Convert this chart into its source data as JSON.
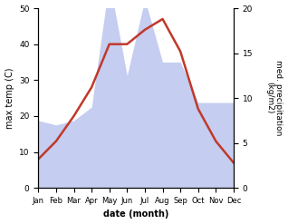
{
  "months": [
    "Jan",
    "Feb",
    "Mar",
    "Apr",
    "May",
    "Jun",
    "Jul",
    "Aug",
    "Sep",
    "Oct",
    "Nov",
    "Dec"
  ],
  "temperature": [
    8,
    13,
    20,
    28,
    40,
    40,
    44,
    47,
    38,
    22,
    13,
    7
  ],
  "precipitation": [
    7.5,
    7.0,
    7.5,
    9.0,
    23.0,
    12.5,
    21.0,
    14.0,
    14.0,
    9.5,
    9.5,
    9.5
  ],
  "temp_color": "#c0392b",
  "precip_fill_color": "#c5cdf0",
  "temp_ylim": [
    0,
    50
  ],
  "precip_ylim": [
    0,
    20
  ],
  "temp_yticks": [
    0,
    10,
    20,
    30,
    40,
    50
  ],
  "precip_yticks": [
    0,
    5,
    10,
    15,
    20
  ],
  "xlabel": "date (month)",
  "ylabel_left": "max temp (C)",
  "ylabel_right": "med. precipitation\n(kg/m2)",
  "temp_scale": 2.5
}
